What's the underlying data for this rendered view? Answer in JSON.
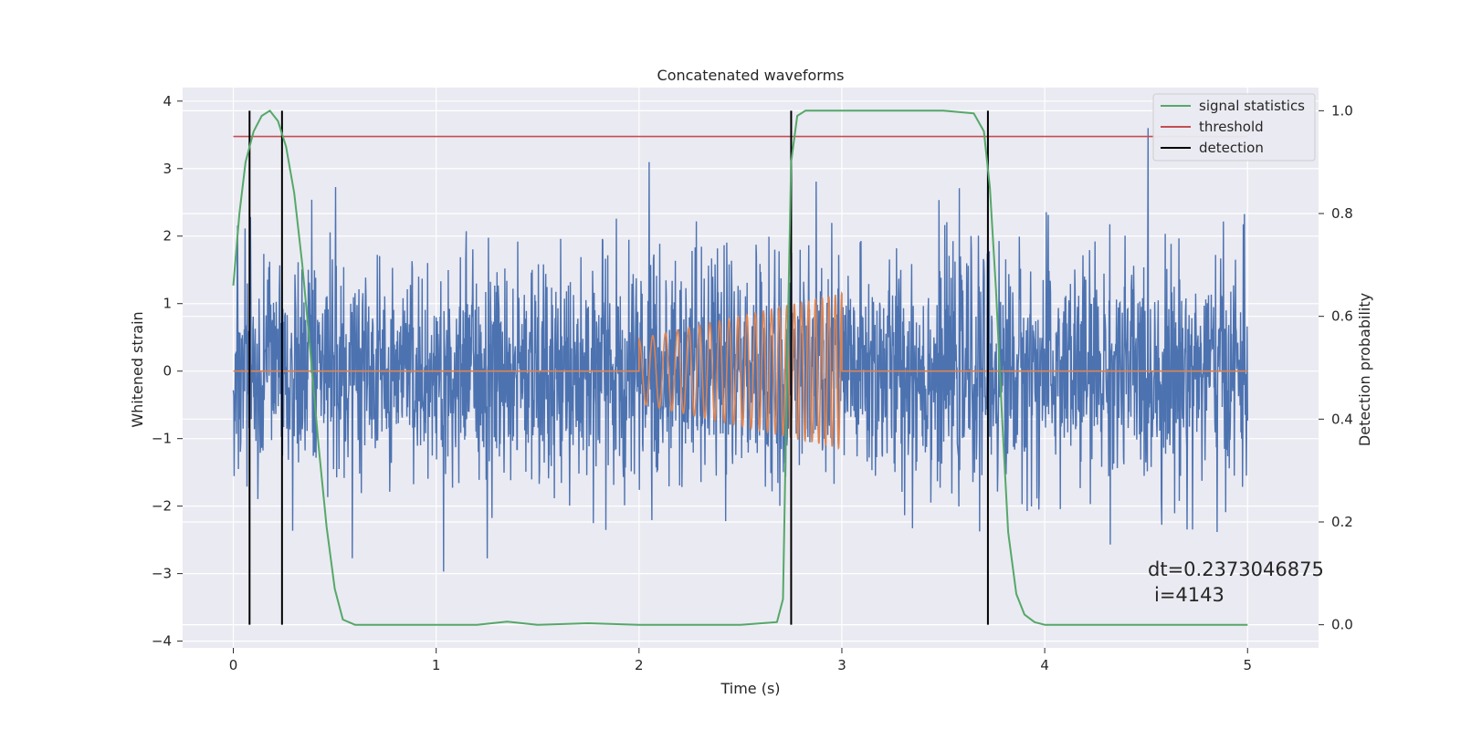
{
  "chart_data": {
    "type": "line",
    "title": "Concatenated waveforms",
    "xlabel": "Time (s)",
    "ylabel_left": "Whitened strain",
    "ylabel_right": "Detection probability",
    "xlim": [
      -0.25,
      5.35
    ],
    "ylim_left": [
      -4.1,
      4.2
    ],
    "ylim_right": [
      -0.045,
      1.045
    ],
    "xticks": [
      0,
      1,
      2,
      3,
      4,
      5
    ],
    "yticks_left": [
      -4,
      -3,
      -2,
      -1,
      0,
      1,
      2,
      3,
      4
    ],
    "yticks_right": [
      0.0,
      0.2,
      0.4,
      0.6,
      0.8,
      1.0
    ],
    "xtick_labels": [
      "0",
      "1",
      "2",
      "3",
      "4",
      "5"
    ],
    "ytick_labels_left": [
      "−4",
      "−3",
      "−2",
      "−1",
      "0",
      "1",
      "2",
      "3",
      "4"
    ],
    "ytick_labels_right": [
      "0.0",
      "0.2",
      "0.4",
      "0.6",
      "0.8",
      "1.0"
    ],
    "grid": true,
    "legend_position": "top-right",
    "legend": [
      {
        "label": "signal statistics",
        "color": "#55a868"
      },
      {
        "label": "threshold",
        "color": "#c44e52"
      },
      {
        "label": "detection",
        "color": "#000000"
      }
    ],
    "noise_series": {
      "axis": "left",
      "color": "#4c72b0",
      "x_range": [
        0,
        5
      ],
      "typical_range": [
        -2.5,
        3.8
      ],
      "note_visible": false
    },
    "injected_signal": {
      "axis": "left",
      "color": "#dd8452",
      "x_start": 2.0,
      "x_end": 3.0,
      "amplitude_start": 0.48,
      "amplitude_end": 1.15,
      "frequency_start_hz": 14,
      "frequency_end_hz": 32
    },
    "signal_statistics": {
      "axis": "right",
      "color": "#55a868",
      "x": [
        0.0,
        0.03,
        0.06,
        0.1,
        0.14,
        0.18,
        0.22,
        0.26,
        0.3,
        0.34,
        0.38,
        0.42,
        0.46,
        0.5,
        0.54,
        0.6,
        0.8,
        1.0,
        1.2,
        1.35,
        1.5,
        1.75,
        2.0,
        2.5,
        2.68,
        2.71,
        2.73,
        2.75,
        2.78,
        2.82,
        3.0,
        3.5,
        3.65,
        3.7,
        3.73,
        3.76,
        3.79,
        3.82,
        3.86,
        3.9,
        3.95,
        4.0,
        4.5,
        5.0
      ],
      "y": [
        0.66,
        0.8,
        0.9,
        0.96,
        0.99,
        1.0,
        0.98,
        0.93,
        0.84,
        0.7,
        0.53,
        0.35,
        0.19,
        0.07,
        0.01,
        0.0,
        0.0,
        0.0,
        0.0,
        0.006,
        0.0,
        0.003,
        0.0,
        0.0,
        0.005,
        0.05,
        0.5,
        0.9,
        0.99,
        1.0,
        1.0,
        1.0,
        0.995,
        0.96,
        0.85,
        0.65,
        0.4,
        0.18,
        0.06,
        0.02,
        0.005,
        0.0,
        0.0,
        0.0
      ]
    },
    "threshold": {
      "axis": "right",
      "color": "#c44e52",
      "value": 0.95,
      "x_range": [
        0,
        5
      ]
    },
    "detections": {
      "color": "#000000",
      "x": [
        0.08,
        0.24,
        2.75,
        3.72
      ]
    },
    "annotation": [
      "dt=0.2373046875",
      "i=4143"
    ]
  }
}
